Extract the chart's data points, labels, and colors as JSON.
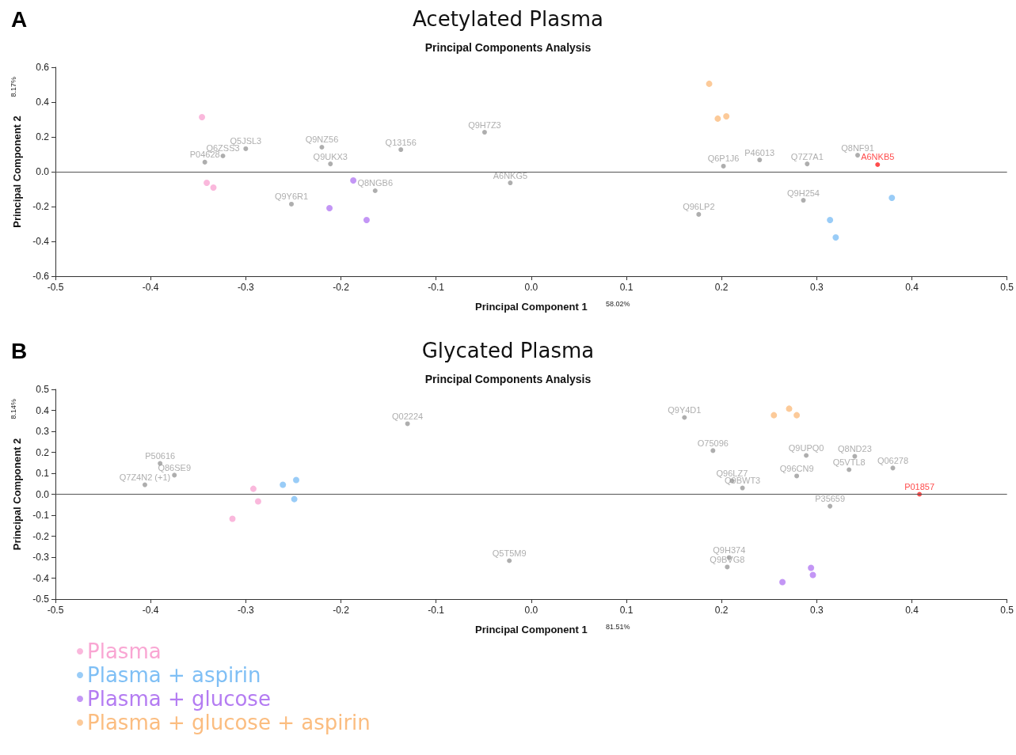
{
  "chart_data": [
    {
      "type": "scatter",
      "title": "Acetylated Plasma",
      "subtitle": "Principal Components Analysis",
      "xlabel": "Principal Component 1",
      "ylabel": "Principal Component 2",
      "marker": "circle",
      "legend": false,
      "grid": false,
      "xlim": [
        -0.5,
        0.5
      ],
      "xticks": [
        -0.5,
        -0.4,
        -0.3,
        -0.2,
        -0.1,
        {
          "value": 0,
          "label": "0.0"
        },
        0.1,
        0.2,
        0.3,
        0.4,
        0.5
      ],
      "ylim": [
        -0.6,
        0.6
      ],
      "yticks": [
        -0.6,
        -0.4,
        -0.2,
        {
          "value": 0,
          "label": "0.0"
        },
        0.2,
        0.4,
        0.6
      ],
      "ref_lines": [
        {
          "axis": "y",
          "value": 0,
          "color": "#555555"
        }
      ],
      "series": [
        {
          "color": "#f9a6d3",
          "x": [
            -0.346,
            -0.341,
            -0.334
          ],
          "values": [
            0.314,
            -0.064,
            -0.091
          ]
        },
        {
          "color": "#7fbff5",
          "x": [
            0.379,
            0.314,
            0.32
          ],
          "values": [
            -0.15,
            -0.277,
            -0.377
          ]
        },
        {
          "color": "#b47cf2",
          "x": [
            -0.187,
            -0.212,
            -0.173
          ],
          "values": [
            -0.05,
            -0.209,
            -0.277
          ]
        },
        {
          "color": "#fbbd80",
          "x": [
            0.187,
            0.196,
            0.205
          ],
          "values": [
            0.505,
            0.305,
            0.318
          ]
        },
        {
          "color": "#9a9a9a",
          "x": [
            -0.049,
            -0.3,
            -0.22,
            -0.137,
            -0.324,
            -0.343,
            -0.211,
            -0.022,
            -0.164,
            -0.252,
            0.202,
            0.24,
            0.29,
            0.176,
            0.343,
            0.286
          ],
          "values": [
            0.227,
            0.132,
            0.141,
            0.127,
            0.091,
            0.055,
            0.045,
            -0.064,
            -0.109,
            -0.186,
            0.032,
            0.068,
            0.045,
            -0.245,
            0.095,
            -0.164
          ],
          "value_labels": [
            "Q9H7Z3",
            "Q5JSL3",
            "Q9NZ56",
            "Q13156",
            "Q6ZSS3",
            "P04628",
            "Q9UKX3",
            "A6NKG5",
            "Q8NGB6",
            "Q9Y6R1",
            "Q6P1J6",
            "P46013",
            "Q7Z7A1",
            "Q96LP2",
            "Q8NF91",
            "Q9H254"
          ]
        },
        {
          "color": "#ff2020",
          "x": [
            0.364
          ],
          "values": [
            0.041
          ],
          "value_labels": [
            "A6NKB5"
          ]
        }
      ],
      "annotations": [
        "A",
        "8.17%",
        "58.02%"
      ]
    },
    {
      "type": "scatter",
      "title": "Glycated Plasma",
      "subtitle": "Principal Components Analysis",
      "xlabel": "Principal Component 1",
      "ylabel": "Principal Component 2",
      "marker": "circle",
      "legend": "bottom",
      "grid": false,
      "xlim": [
        -0.5,
        0.5
      ],
      "xticks": [
        -0.5,
        -0.4,
        -0.3,
        -0.2,
        -0.1,
        {
          "value": 0,
          "label": "0.0"
        },
        0.1,
        0.2,
        0.3,
        0.4,
        0.5
      ],
      "ylim": [
        -0.5,
        0.5
      ],
      "yticks": [
        -0.5,
        -0.4,
        -0.3,
        -0.2,
        -0.1,
        {
          "value": 0,
          "label": "0.0"
        },
        0.1,
        0.2,
        0.3,
        0.4,
        0.5
      ],
      "ref_lines": [
        {
          "axis": "y",
          "value": 0,
          "color": "#555555"
        }
      ],
      "series": [
        {
          "name": "Plasma",
          "color": "#f9a6d3",
          "x": [
            -0.292,
            -0.287,
            -0.314
          ],
          "values": [
            0.026,
            -0.034,
            -0.117
          ]
        },
        {
          "name": "Plasma + aspirin",
          "color": "#7fbff5",
          "x": [
            -0.261,
            -0.247,
            -0.249
          ],
          "values": [
            0.045,
            0.068,
            -0.023
          ]
        },
        {
          "name": "Plasma + glucose",
          "color": "#b47cf2",
          "x": [
            0.294,
            0.296,
            0.264
          ],
          "values": [
            -0.351,
            -0.385,
            -0.419
          ]
        },
        {
          "name": "Plasma + glucose + aspirin",
          "color": "#fbbd80",
          "x": [
            0.255,
            0.271,
            0.279
          ],
          "values": [
            0.377,
            0.408,
            0.377
          ]
        },
        {
          "color": "#9a9a9a",
          "x": [
            -0.13,
            0.161,
            0.191,
            0.289,
            0.34,
            0.334,
            0.38,
            0.279,
            0.211,
            0.222,
            0.314,
            -0.023,
            0.208,
            0.206,
            -0.406,
            -0.39,
            -0.375
          ],
          "values": [
            0.336,
            0.366,
            0.208,
            0.185,
            0.181,
            0.117,
            0.125,
            0.087,
            0.064,
            0.03,
            -0.057,
            -0.317,
            -0.302,
            -0.347,
            0.045,
            0.147,
            0.091
          ],
          "value_labels": [
            "Q02224",
            "Q9Y4D1",
            "O75096",
            "Q9UPQ0",
            "Q8ND23",
            "Q5VTL8",
            "Q06278",
            "Q96CN9",
            "Q96LZ7",
            "Q9BWT3",
            "P35659",
            "Q5T5M9",
            "Q9H374",
            "Q9BVG8",
            "Q7Z4N2 (+1)",
            "P50616",
            "Q86SE9"
          ]
        },
        {
          "color": "#ff2020",
          "x": [
            0.408
          ],
          "values": [
            0
          ],
          "value_labels": [
            "P01857"
          ]
        }
      ],
      "annotations": [
        "B",
        "8.14%",
        "81.51%"
      ]
    }
  ]
}
